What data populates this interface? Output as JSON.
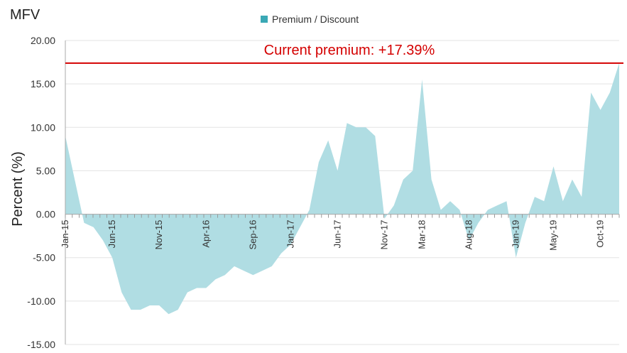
{
  "chart_data": {
    "type": "area",
    "title": "MFV",
    "ylabel": "Percent (%)",
    "xlabel": "",
    "ylim": [
      -15,
      20
    ],
    "y_ticks": [
      "20.00",
      "15.00",
      "10.00",
      "5.00",
      "0.00",
      "-5.00",
      "-10.00",
      "-15.00"
    ],
    "x_tick_labels": [
      "Jan-15",
      "Jun-15",
      "Nov-15",
      "Apr-16",
      "Sep-16",
      "Jan-17",
      "Jun-17",
      "Nov-17",
      "Mar-18",
      "Aug-18",
      "Jan-19",
      "May-19",
      "Oct-19"
    ],
    "grid": true,
    "legend_position": "top-center",
    "series": [
      {
        "name": "Premium / Discount",
        "color": "#b0dde3",
        "legend_color": "#3aa8b5",
        "x": [
          "2015-01",
          "2015-02",
          "2015-03",
          "2015-04",
          "2015-05",
          "2015-06",
          "2015-07",
          "2015-08",
          "2015-09",
          "2015-10",
          "2015-11",
          "2015-12",
          "2016-01",
          "2016-02",
          "2016-03",
          "2016-04",
          "2016-05",
          "2016-06",
          "2016-07",
          "2016-08",
          "2016-09",
          "2016-10",
          "2016-11",
          "2016-12",
          "2017-01",
          "2017-02",
          "2017-03",
          "2017-04",
          "2017-05",
          "2017-06",
          "2017-07",
          "2017-08",
          "2017-09",
          "2017-10",
          "2017-11",
          "2017-12",
          "2018-01",
          "2018-02",
          "2018-03",
          "2018-04",
          "2018-05",
          "2018-06",
          "2018-07",
          "2018-08",
          "2018-09",
          "2018-10",
          "2018-11",
          "2018-12",
          "2019-01",
          "2019-02",
          "2019-03",
          "2019-04",
          "2019-05",
          "2019-06",
          "2019-07",
          "2019-08",
          "2019-09",
          "2019-10",
          "2019-11",
          "2019-12"
        ],
        "values": [
          9.0,
          4.0,
          -1.0,
          -1.5,
          -3.0,
          -5.0,
          -9.0,
          -11.0,
          -11.0,
          -10.5,
          -10.5,
          -11.5,
          -11.0,
          -9.0,
          -8.5,
          -8.5,
          -7.5,
          -7.0,
          -6.0,
          -6.5,
          -7.0,
          -6.5,
          -6.0,
          -4.5,
          -3.5,
          -1.5,
          0.5,
          6.0,
          8.5,
          5.0,
          10.5,
          10.0,
          10.0,
          9.0,
          -0.5,
          1.0,
          4.0,
          5.0,
          15.5,
          4.0,
          0.5,
          1.5,
          0.5,
          -3.0,
          -1.0,
          0.5,
          1.0,
          1.5,
          -5.0,
          -1.0,
          2.0,
          1.5,
          5.5,
          1.5,
          4.0,
          2.0,
          14.0,
          12.0,
          14.0,
          17.39
        ]
      }
    ],
    "reference_line": {
      "value": 17.39,
      "color": "#d40000",
      "label": "Current premium: +17.39%"
    }
  }
}
